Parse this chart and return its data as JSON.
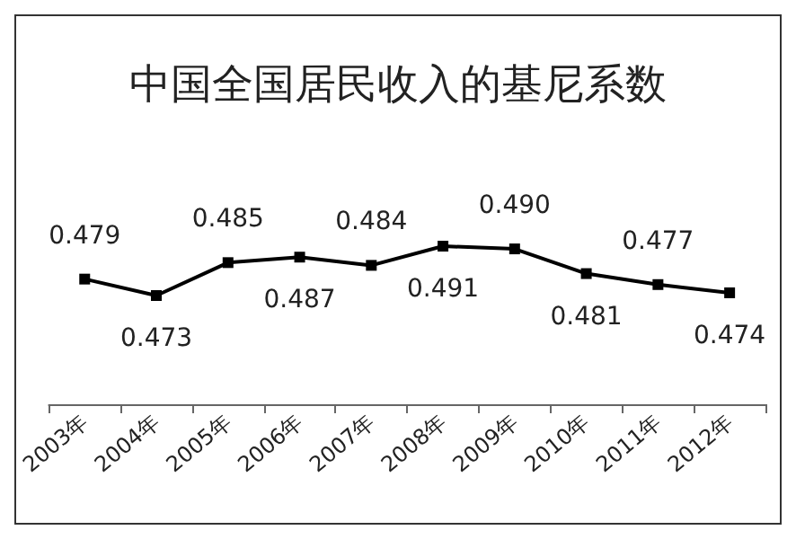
{
  "chart_data": {
    "type": "line",
    "title": "中国全国居民收入的基尼系数",
    "categories": [
      "2003年",
      "2004年",
      "2005年",
      "2006年",
      "2007年",
      "2008年",
      "2009年",
      "2010年",
      "2011年",
      "2012年"
    ],
    "series": [
      {
        "color": "#000000",
        "values": [
          0.479,
          0.473,
          0.485,
          0.487,
          0.484,
          0.491,
          0.49,
          0.481,
          0.477,
          0.474
        ],
        "value_labels": [
          "0.479",
          "0.473",
          "0.485",
          "0.487",
          "0.484",
          "0.491",
          "0.490",
          "0.481",
          "0.477",
          "0.474"
        ]
      }
    ],
    "marker": "square",
    "line_style": "solid",
    "grid": false
  }
}
